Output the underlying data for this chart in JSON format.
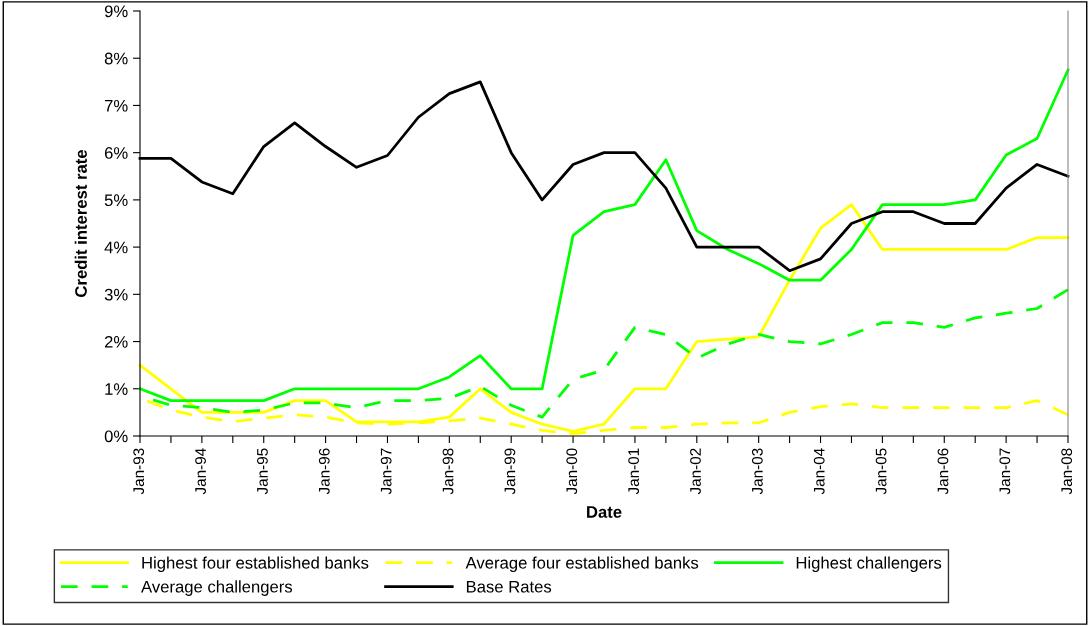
{
  "chart_data": {
    "type": "line",
    "xlabel": "Date",
    "ylabel": "Credit interest rate",
    "categories": [
      "Jan-93",
      null,
      "Jan-94",
      null,
      "Jan-95",
      null,
      "Jan-96",
      null,
      "Jan-97",
      null,
      "Jan-98",
      null,
      "Jan-99",
      null,
      "Jan-00",
      null,
      "Jan-01",
      null,
      "Jan-02",
      null,
      "Jan-03",
      null,
      "Jan-04",
      null,
      "Jan-05",
      null,
      "Jan-06",
      null,
      "Jan-07",
      null,
      "Jan-08"
    ],
    "series": [
      {
        "name": "Highest four established banks",
        "color": "#ffff00",
        "line_style": "solid",
        "values": [
          1.5,
          1.0,
          0.5,
          0.5,
          0.5,
          0.75,
          0.75,
          0.3,
          0.3,
          0.3,
          0.4,
          1.0,
          0.5,
          0.25,
          0.1,
          0.25,
          1.0,
          1.0,
          2.0,
          2.05,
          2.1,
          3.3,
          4.4,
          4.9,
          3.95,
          3.95,
          3.95,
          3.95,
          3.95,
          4.2,
          4.2
        ]
      },
      {
        "name": "Average four established banks",
        "color": "#ffff00",
        "line_style": "dashed",
        "values": [
          0.8,
          0.55,
          0.4,
          0.3,
          0.38,
          0.45,
          0.4,
          0.28,
          0.25,
          0.28,
          0.32,
          0.38,
          0.25,
          0.12,
          0.05,
          0.12,
          0.18,
          0.18,
          0.25,
          0.28,
          0.28,
          0.5,
          0.62,
          0.68,
          0.6,
          0.6,
          0.6,
          0.6,
          0.6,
          0.75,
          0.45
        ]
      },
      {
        "name": "Highest challengers",
        "color": "#00ff00",
        "line_style": "solid",
        "values": [
          1.0,
          0.75,
          0.75,
          0.75,
          0.75,
          1.0,
          1.0,
          1.0,
          1.0,
          1.0,
          1.25,
          1.7,
          1.0,
          1.0,
          4.25,
          4.75,
          4.9,
          5.85,
          4.35,
          3.95,
          3.65,
          3.3,
          3.3,
          3.95,
          4.9,
          4.9,
          4.9,
          5.0,
          5.95,
          6.3,
          7.75
        ]
      },
      {
        "name": "Average challengers",
        "color": "#00ff00",
        "line_style": "dashed",
        "values": [
          0.85,
          0.65,
          0.6,
          0.5,
          0.55,
          0.7,
          0.7,
          0.6,
          0.75,
          0.75,
          0.8,
          1.05,
          0.65,
          0.4,
          1.2,
          1.4,
          2.3,
          2.15,
          1.65,
          1.95,
          2.15,
          2.0,
          1.95,
          2.15,
          2.4,
          2.4,
          2.3,
          2.5,
          2.6,
          2.7,
          3.1
        ]
      },
      {
        "name": "Base Rates",
        "color": "#000000",
        "line_style": "solid",
        "values": [
          5.88,
          5.88,
          5.38,
          5.13,
          6.13,
          6.63,
          6.13,
          5.69,
          5.94,
          6.75,
          7.25,
          7.5,
          6.0,
          5.0,
          5.75,
          6.0,
          6.0,
          5.25,
          4.0,
          4.0,
          4.0,
          3.5,
          3.75,
          4.5,
          4.75,
          4.75,
          4.5,
          4.5,
          5.25,
          5.75,
          5.5
        ]
      }
    ],
    "ylim": [
      0,
      9
    ],
    "yticks": [
      {
        "value": 0,
        "label": "0%"
      },
      {
        "value": 1,
        "label": "1%"
      },
      {
        "value": 2,
        "label": "2%"
      },
      {
        "value": 3,
        "label": "3%"
      },
      {
        "value": 4,
        "label": "4%"
      },
      {
        "value": 5,
        "label": "5%"
      },
      {
        "value": 6,
        "label": "6%"
      },
      {
        "value": 7,
        "label": "7%"
      },
      {
        "value": 8,
        "label": "8%"
      },
      {
        "value": 9,
        "label": "9%"
      }
    ],
    "grid": false,
    "legend": "bottom",
    "marker": "none"
  }
}
